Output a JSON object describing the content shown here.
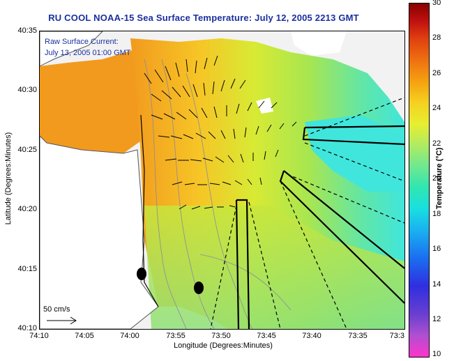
{
  "title": "RU COOL  NOAA-15  Sea Surface Temperature:  July 12, 2005 2213 GMT",
  "annotation": {
    "line1": "Raw Surface Current:",
    "line2": "July 13, 2005 01:00 GMT"
  },
  "axes": {
    "xlabel": "Longitude (Degrees:Minutes)",
    "ylabel": "Latitude (Degrees:Minutes)",
    "xticks": [
      "74:10",
      "74:05",
      "74:00",
      "73:55",
      "73:50",
      "73:45",
      "73:40",
      "73:35",
      "73:3"
    ],
    "yticks": [
      "40:35",
      "40:30",
      "40:25",
      "40:20",
      "40:15",
      "40:10"
    ]
  },
  "colorbar": {
    "title": "Temperature (°C)",
    "ticks": [
      "30",
      "28",
      "26",
      "24",
      "22",
      "20",
      "18",
      "16",
      "14",
      "12",
      "10"
    ],
    "min": 10,
    "max": 30
  },
  "scale": {
    "label": "50 cm/s"
  },
  "colors": {
    "title": "#1a2fa0",
    "land": "#ffffff",
    "no_data": "#f2f2f2",
    "warm_water": "#f29a1e",
    "mid_water": "#c8e63c",
    "cool_water": "#40e6dc"
  }
}
